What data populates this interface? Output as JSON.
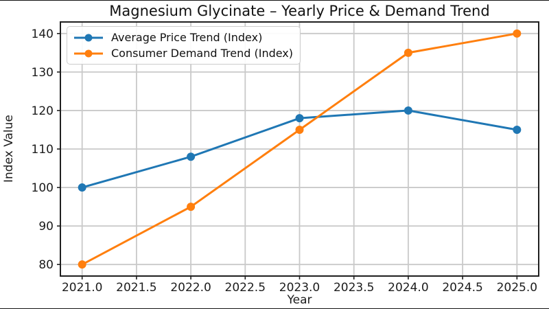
{
  "chart_data": {
    "type": "line",
    "title": "Magnesium Glycinate – Yearly Price & Demand Trend",
    "xlabel": "Year",
    "ylabel": "Index Value",
    "x": [
      2021,
      2022,
      2023,
      2024,
      2025
    ],
    "series": [
      {
        "name": "Average Price Trend (Index)",
        "color": "#1f77b4",
        "values": [
          100,
          108,
          118,
          120,
          115
        ]
      },
      {
        "name": "Consumer Demand Trend (Index)",
        "color": "#ff7f0e",
        "values": [
          80,
          95,
          115,
          135,
          140
        ]
      }
    ],
    "xlim": [
      2020.8,
      2025.2
    ],
    "ylim": [
      77,
      143
    ],
    "x_ticks": [
      2021.0,
      2021.5,
      2022.0,
      2022.5,
      2023.0,
      2023.5,
      2024.0,
      2024.5,
      2025.0
    ],
    "x_tick_labels": [
      "2021.0",
      "2021.5",
      "2022.0",
      "2022.5",
      "2023.0",
      "2023.5",
      "2024.0",
      "2024.5",
      "2025.0"
    ],
    "y_ticks": [
      80,
      90,
      100,
      110,
      120,
      130,
      140
    ],
    "y_tick_labels": [
      "80",
      "90",
      "100",
      "110",
      "120",
      "130",
      "140"
    ],
    "grid": true,
    "legend_position": "upper-left",
    "colors": {
      "grid": "#c9c9c9",
      "spine": "#1f1f1f",
      "tick_text": "#1c1c1c",
      "background": "#ffffff"
    }
  }
}
